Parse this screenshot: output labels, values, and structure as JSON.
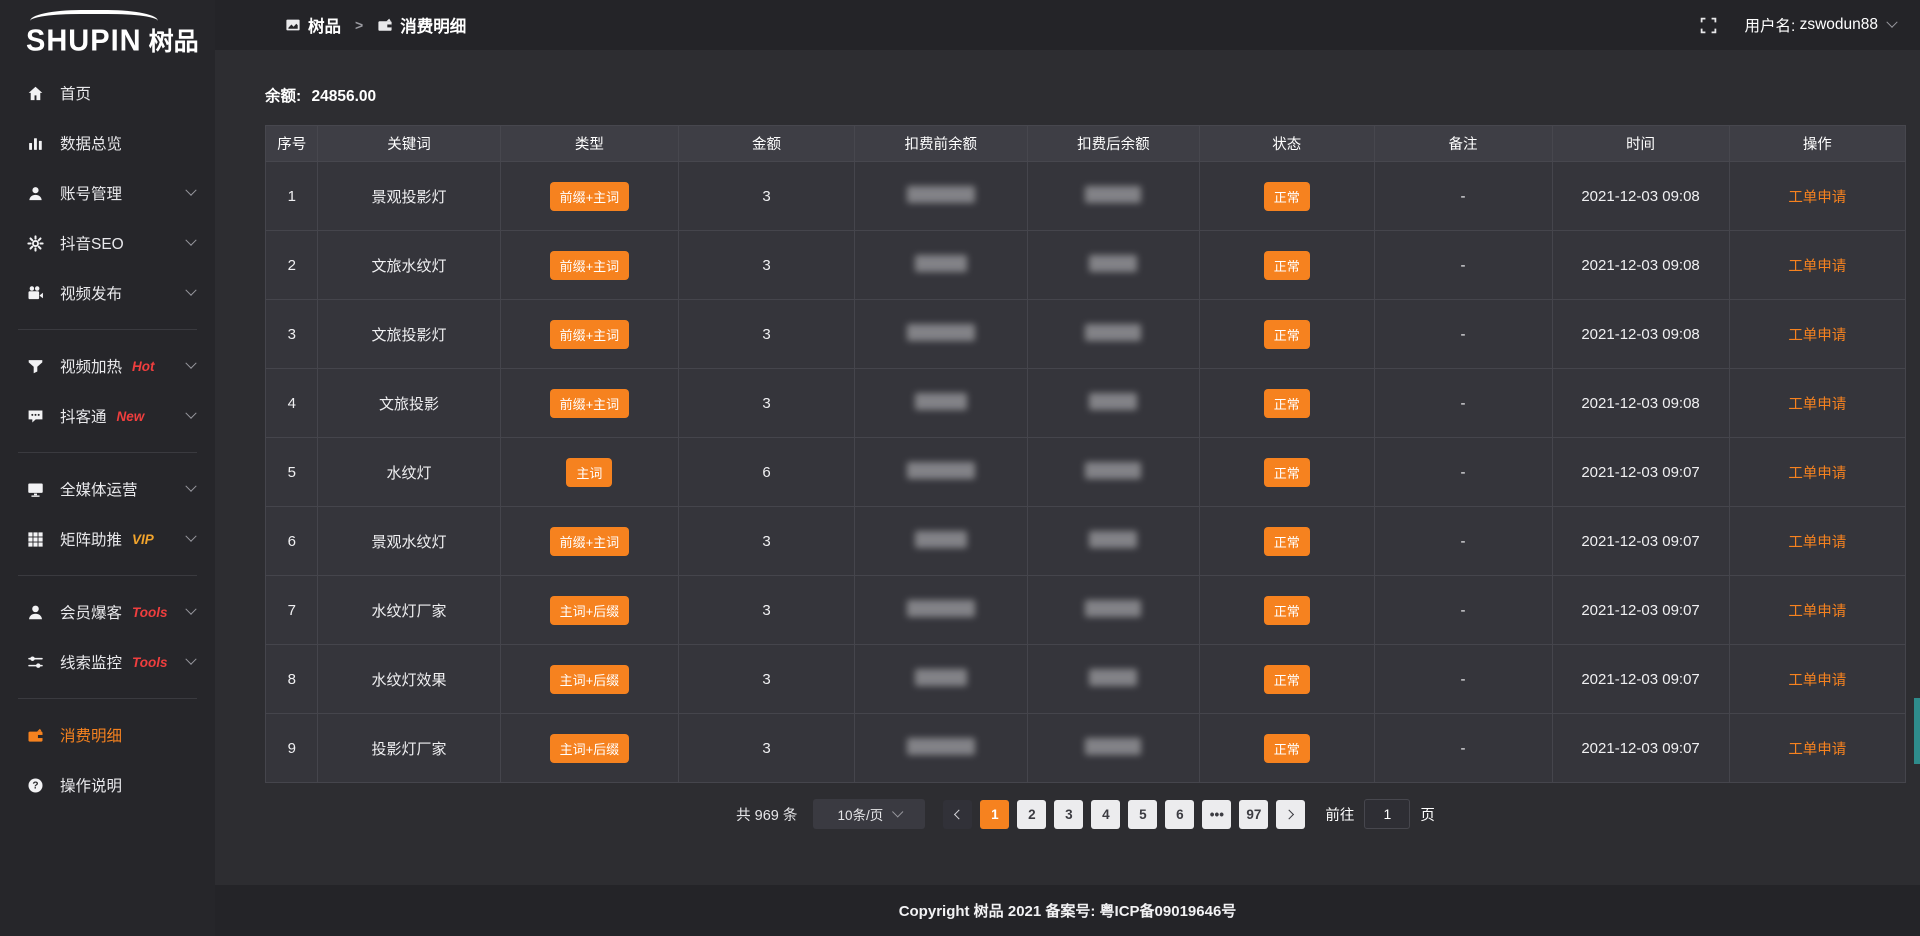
{
  "sidebar": {
    "logo": {
      "brand_en": "SHUPIN",
      "brand_cn": "树品"
    },
    "items": [
      {
        "label": "首页",
        "icon": "home-icon"
      },
      {
        "label": "数据总览",
        "icon": "bar-chart-icon"
      },
      {
        "label": "账号管理",
        "icon": "user-icon",
        "chevron": true
      },
      {
        "label": "抖音SEO",
        "icon": "gear-icon",
        "chevron": true
      },
      {
        "label": "视频发布",
        "icon": "video-camera-icon",
        "chevron": true,
        "divider_after": true
      },
      {
        "label": "视频加热",
        "icon": "funnel-icon",
        "tag": "Hot",
        "tag_color": "#f03e3e",
        "chevron": true
      },
      {
        "label": "抖客通",
        "icon": "chat-icon",
        "tag": "New",
        "tag_color": "#f03e3e",
        "chevron": true,
        "divider_after": true
      },
      {
        "label": "全媒体运营",
        "icon": "monitor-icon",
        "chevron": true
      },
      {
        "label": "矩阵助推",
        "icon": "grid-icon",
        "tag": "VIP",
        "tag_color": "#f2a42c",
        "chevron": true,
        "divider_after": true
      },
      {
        "label": "会员爆客",
        "icon": "user-solid-icon",
        "tag": "Tools",
        "tag_color": "#f03e3e",
        "chevron": true
      },
      {
        "label": "线索监控",
        "icon": "sliders-icon",
        "tag": "Tools",
        "tag_color": "#f03e3e",
        "chevron": true,
        "divider_after": true
      },
      {
        "label": "消费明细",
        "icon": "wallet-icon",
        "active": true
      },
      {
        "label": "操作说明",
        "icon": "question-icon"
      }
    ]
  },
  "topbar": {
    "breadcrumb": {
      "home_label": "树品",
      "home_icon": "app-icon",
      "separator": ">",
      "current_label": "消费明细",
      "current_icon": "wallet-icon"
    },
    "fullscreen_icon": "fullscreen-icon",
    "user_label": "用户名:",
    "username": "zswodun88"
  },
  "balance": {
    "label": "余额:",
    "value": "24856.00"
  },
  "table": {
    "columns": [
      "序号",
      "关键词",
      "类型",
      "金额",
      "扣费前余额",
      "扣费后余额",
      "状态",
      "备注",
      "时间",
      "操作"
    ],
    "rows": [
      {
        "index": "1",
        "keyword": "景观投影灯",
        "type": "前缀+主词",
        "amount": "3",
        "status": "正常",
        "remark": "-",
        "time": "2021-12-03 09:08",
        "action": "工单申请"
      },
      {
        "index": "2",
        "keyword": "文旅水纹灯",
        "type": "前缀+主词",
        "amount": "3",
        "status": "正常",
        "remark": "-",
        "time": "2021-12-03 09:08",
        "action": "工单申请"
      },
      {
        "index": "3",
        "keyword": "文旅投影灯",
        "type": "前缀+主词",
        "amount": "3",
        "status": "正常",
        "remark": "-",
        "time": "2021-12-03 09:08",
        "action": "工单申请"
      },
      {
        "index": "4",
        "keyword": "文旅投影",
        "type": "前缀+主词",
        "amount": "3",
        "status": "正常",
        "remark": "-",
        "time": "2021-12-03 09:08",
        "action": "工单申请"
      },
      {
        "index": "5",
        "keyword": "水纹灯",
        "type": "主词",
        "amount": "6",
        "status": "正常",
        "remark": "-",
        "time": "2021-12-03 09:07",
        "action": "工单申请"
      },
      {
        "index": "6",
        "keyword": "景观水纹灯",
        "type": "前缀+主词",
        "amount": "3",
        "status": "正常",
        "remark": "-",
        "time": "2021-12-03 09:07",
        "action": "工单申请"
      },
      {
        "index": "7",
        "keyword": "水纹灯厂家",
        "type": "主词+后缀",
        "amount": "3",
        "status": "正常",
        "remark": "-",
        "time": "2021-12-03 09:07",
        "action": "工单申请"
      },
      {
        "index": "8",
        "keyword": "水纹灯效果",
        "type": "主词+后缀",
        "amount": "3",
        "status": "正常",
        "remark": "-",
        "time": "2021-12-03 09:07",
        "action": "工单申请"
      },
      {
        "index": "9",
        "keyword": "投影灯厂家",
        "type": "主词+后缀",
        "amount": "3",
        "status": "正常",
        "remark": "-",
        "time": "2021-12-03 09:07",
        "action": "工单申请"
      }
    ]
  },
  "pagination": {
    "total": "共 969 条",
    "page_size": "10条/页",
    "pages": [
      "1",
      "2",
      "3",
      "4",
      "5",
      "6",
      "•••",
      "97"
    ],
    "active_page": "1",
    "goto_label": "前往",
    "goto_value": "1",
    "goto_unit": "页"
  },
  "footer": {
    "copyright": "Copyright 树品 2021 备案号: 粤ICP备09019646号"
  },
  "colors": {
    "accent": "#f6821f",
    "tag_red": "#f03e3e",
    "tag_gold": "#f2a42c",
    "badge_bg": "#f6821f"
  }
}
